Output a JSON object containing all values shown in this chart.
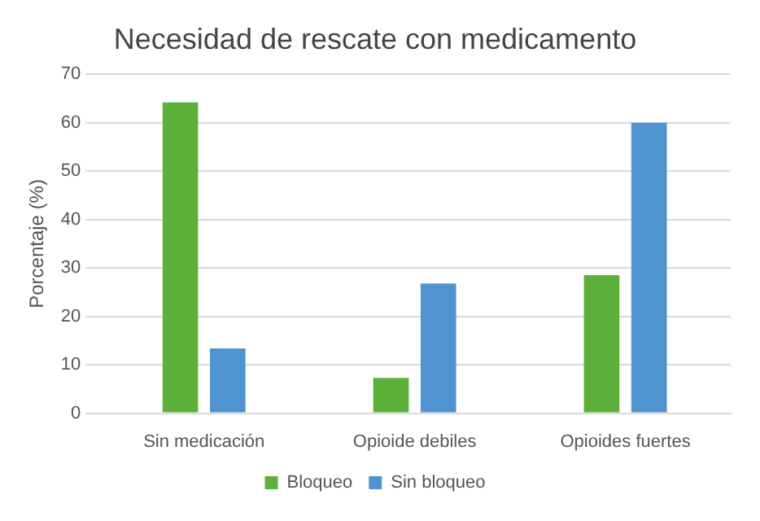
{
  "chart_data": {
    "type": "bar",
    "title": "Necesidad de rescate con medicamento",
    "ylabel": "Porcentaje (%)",
    "categories": [
      "Sin medicación",
      "Opioide debiles",
      "Opioides fuertes"
    ],
    "series": [
      {
        "name": "Bloqueo",
        "color": "#5db13a",
        "values": [
          64.2,
          7.3,
          28.5
        ]
      },
      {
        "name": "Sin bloqueo",
        "color": "#4f94d0",
        "values": [
          13.4,
          26.8,
          60
        ]
      }
    ],
    "ylim": [
      0,
      70
    ],
    "yticks": [
      0,
      10,
      20,
      30,
      40,
      50,
      60,
      70
    ],
    "grid": "y",
    "legend": "bottom"
  }
}
